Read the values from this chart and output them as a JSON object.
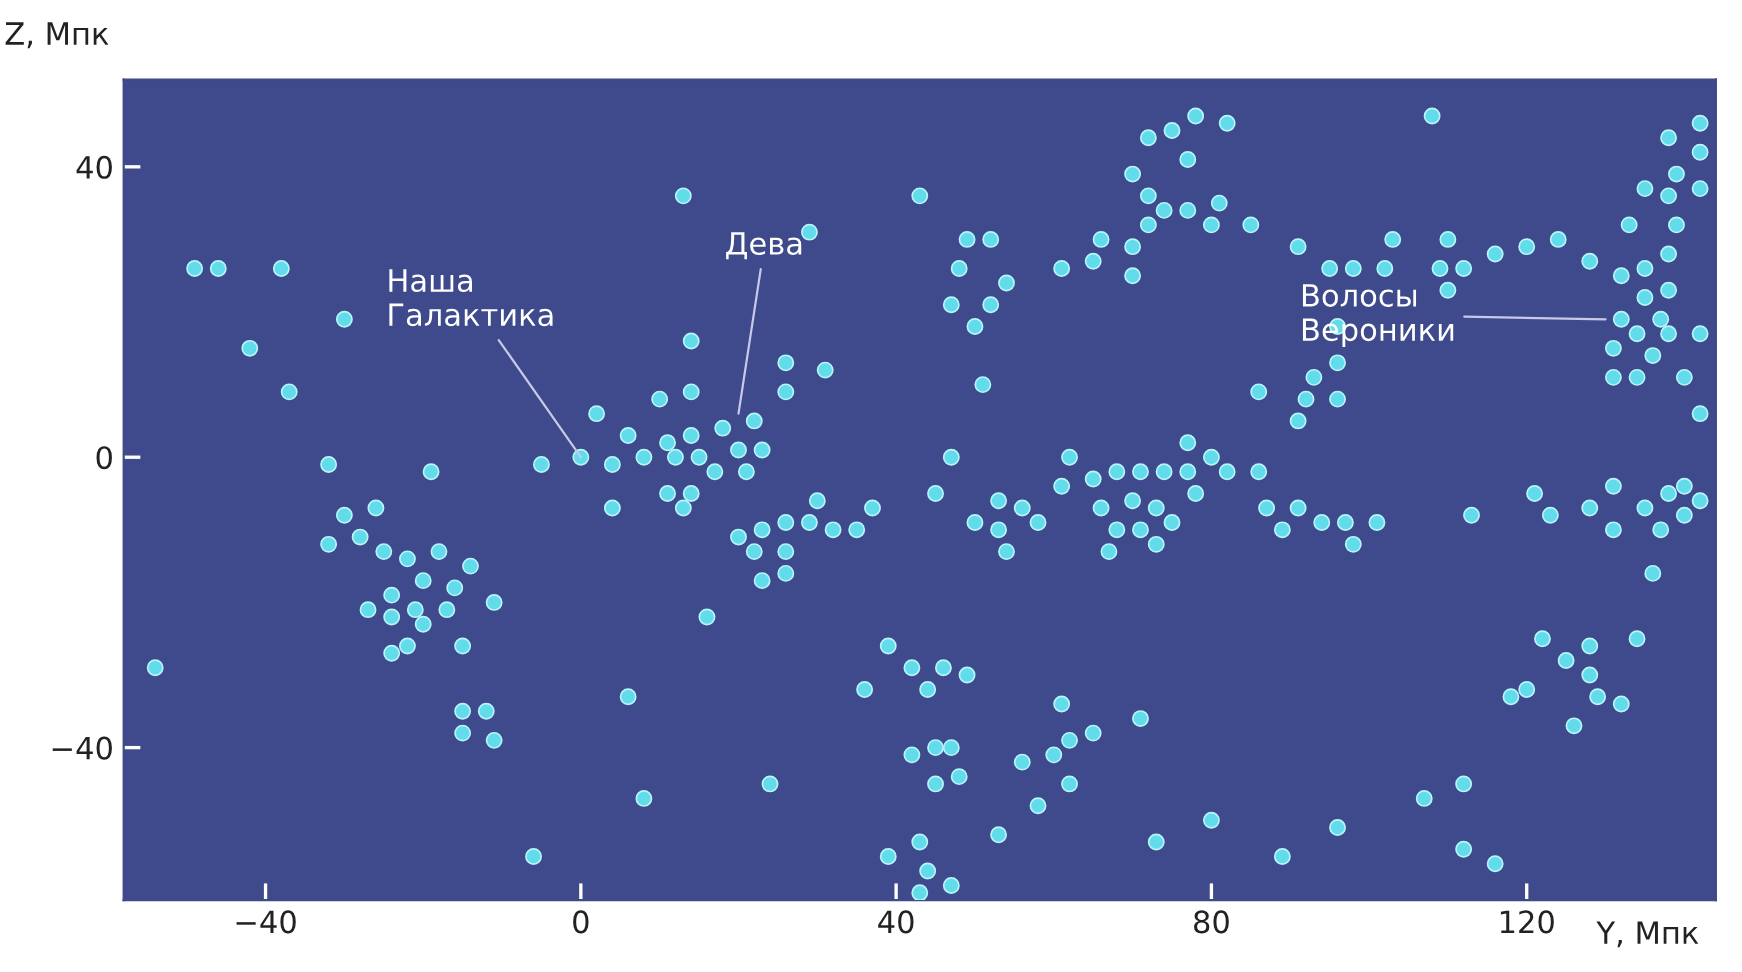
{
  "chart_data": {
    "type": "scatter",
    "xlabel": "Y, Мпк",
    "ylabel": "Z, Мпк",
    "xlim": [
      -58,
      144
    ],
    "ylim": [
      -61,
      52
    ],
    "xticks": [
      -40,
      0,
      40,
      80,
      120
    ],
    "yticks": [
      -40,
      0,
      40
    ],
    "grid": false,
    "marker": "circle",
    "annotations": [
      {
        "text": "Наша\nГалактика",
        "x": 0,
        "y": 0
      },
      {
        "text": "Дева",
        "x": 20,
        "y": 6
      },
      {
        "text": "Волосы\nВероники",
        "x": 130,
        "y": 19
      }
    ],
    "series": [
      {
        "color": "#62dcea",
        "x": [
          -49,
          -46,
          -38,
          -30,
          -42,
          -37,
          -32,
          -19,
          -54,
          -30,
          -26,
          -32,
          -28,
          -25,
          -22,
          -18,
          -20,
          -14,
          -24,
          -21,
          -16,
          -27,
          -24,
          -20,
          -17,
          -11,
          -22,
          -24,
          -15,
          -15,
          -12,
          -15,
          -11,
          -6,
          -5,
          0,
          2,
          6,
          10,
          4,
          8,
          4,
          6,
          8,
          13,
          43,
          29,
          49,
          52,
          48,
          54,
          47,
          52,
          50,
          51,
          14,
          26,
          31,
          26,
          14,
          61,
          65,
          66,
          70,
          70,
          72,
          72,
          70,
          74,
          77,
          77,
          72,
          75,
          78,
          18,
          22,
          14,
          11,
          15,
          20,
          23,
          12,
          17,
          21,
          47,
          62,
          65,
          68,
          71,
          74,
          77,
          77,
          82,
          108,
          81,
          80,
          85,
          91,
          95,
          98,
          102,
          103,
          110,
          109,
          112,
          110,
          116,
          120,
          124,
          128,
          138,
          142,
          142,
          139,
          135,
          138,
          142,
          133,
          139,
          138,
          135,
          132,
          138,
          135,
          132,
          137,
          134,
          138,
          142,
          131,
          136,
          140,
          131,
          134,
          142,
          96,
          96,
          93,
          96,
          92,
          91,
          86,
          80,
          82,
          86,
          87,
          91,
          89,
          94,
          97,
          101,
          98,
          113,
          121,
          123,
          128,
          131,
          131,
          135,
          138,
          137,
          140,
          142,
          140,
          136,
          122,
          128,
          125,
          128,
          134,
          120,
          118,
          129,
          132,
          126,
          112,
          107,
          112,
          116,
          96,
          89,
          80,
          13,
          11,
          14,
          20,
          23,
          26,
          29,
          30,
          32,
          35,
          37,
          22,
          26,
          23,
          26,
          45,
          50,
          53,
          53,
          56,
          58,
          54,
          61,
          66,
          70,
          73,
          75,
          68,
          71,
          73,
          67,
          78,
          16,
          39,
          36,
          42,
          46,
          49,
          44,
          42,
          45,
          47,
          45,
          48,
          24,
          61,
          62,
          65,
          56,
          60,
          62,
          58,
          71,
          53,
          39,
          43,
          44,
          47,
          43,
          73
        ],
        "values": [
          26,
          26,
          26,
          19,
          15,
          9,
          -1,
          -2,
          -29,
          -8,
          -7,
          -12,
          -11,
          -13,
          -14,
          -13,
          -17,
          -15,
          -19,
          -21,
          -18,
          -21,
          -22,
          -23,
          -21,
          -20,
          -26,
          -27,
          -26,
          -35,
          -35,
          -38,
          -39,
          -55,
          -1,
          0,
          6,
          3,
          8,
          -1,
          0,
          -7,
          -33,
          -47,
          36,
          36,
          31,
          30,
          30,
          26,
          24,
          21,
          21,
          18,
          10,
          16,
          13,
          12,
          9,
          9,
          26,
          27,
          30,
          29,
          25,
          32,
          36,
          39,
          34,
          34,
          41,
          44,
          45,
          47,
          4,
          5,
          3,
          2,
          0,
          1,
          1,
          0,
          -2,
          -2,
          0,
          0,
          -3,
          -2,
          -2,
          -2,
          2,
          -2,
          46,
          47,
          35,
          32,
          32,
          29,
          26,
          26,
          26,
          30,
          30,
          26,
          26,
          23,
          28,
          29,
          30,
          27,
          44,
          46,
          42,
          39,
          37,
          36,
          37,
          32,
          32,
          28,
          26,
          25,
          23,
          22,
          19,
          19,
          17,
          17,
          17,
          15,
          14,
          11,
          11,
          11,
          6,
          18,
          13,
          11,
          8,
          8,
          5,
          9,
          0,
          -2,
          -2,
          -7,
          -7,
          -10,
          -9,
          -9,
          -9,
          -12,
          -8,
          -5,
          -8,
          -7,
          -4,
          -10,
          -7,
          -5,
          -10,
          -8,
          -6,
          -4,
          -16,
          -25,
          -26,
          -28,
          -30,
          -25,
          -32,
          -33,
          -33,
          -34,
          -37,
          -45,
          -47,
          -54,
          -56,
          -51,
          -55,
          -50,
          -7,
          -5,
          -5,
          -11,
          -10,
          -9,
          -9,
          -6,
          -10,
          -10,
          -7,
          -13,
          -13,
          -17,
          -16,
          -5,
          -9,
          -6,
          -10,
          -7,
          -9,
          -13,
          -4,
          -7,
          -6,
          -7,
          -9,
          -10,
          -10,
          -12,
          -13,
          -5,
          -22,
          -26,
          -32,
          -29,
          -29,
          -30,
          -32,
          -41,
          -40,
          -40,
          -45,
          -44,
          -45,
          -34,
          -39,
          -38,
          -42,
          -41,
          -45,
          -48,
          -36,
          -52,
          -55,
          -53,
          -57,
          -59,
          -60,
          -53
        ]
      }
    ]
  }
}
